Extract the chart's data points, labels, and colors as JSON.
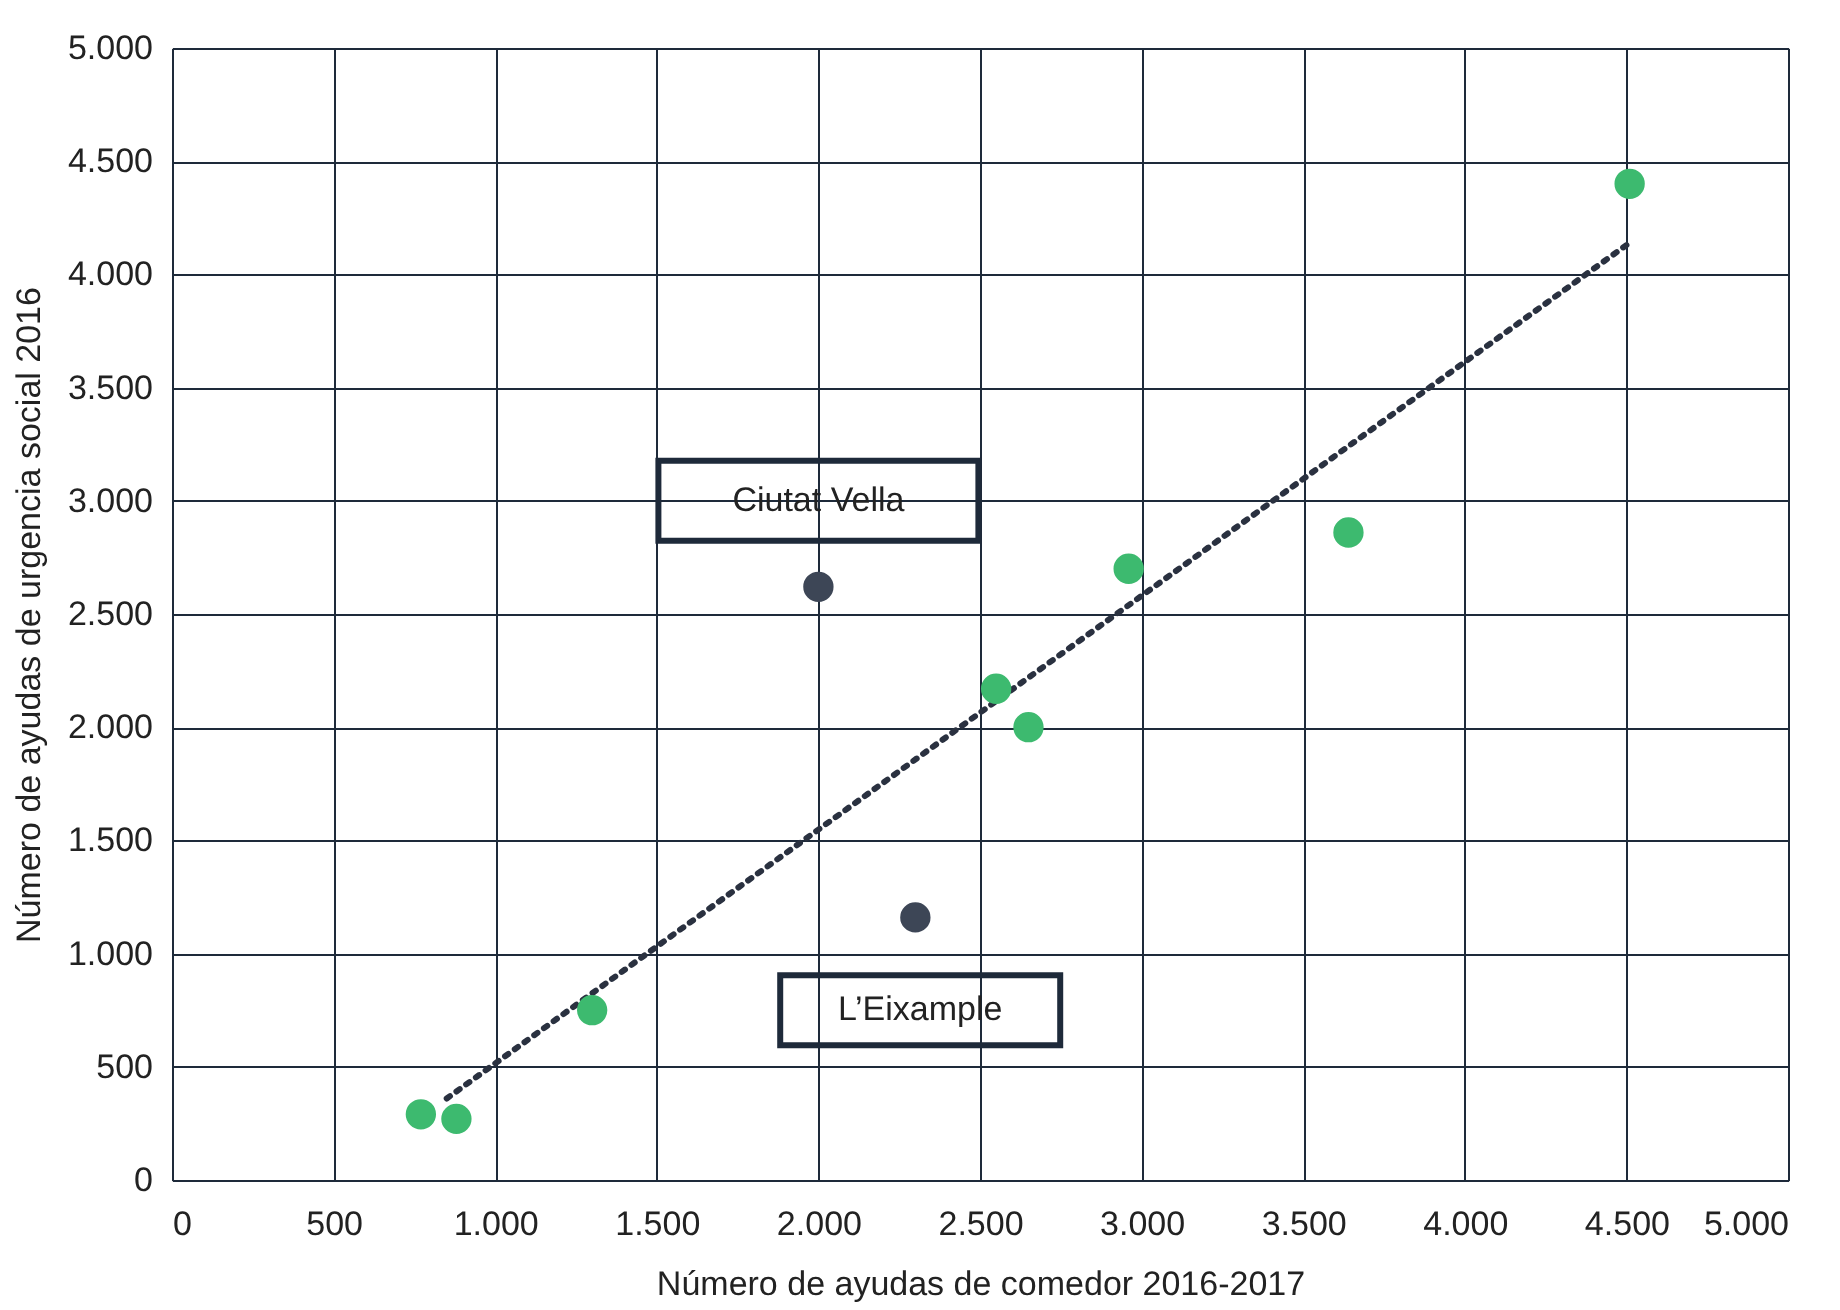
{
  "chart_data": {
    "type": "scatter",
    "xlabel": "Número de ayudas de comedor 2016-2017",
    "ylabel": "Número de ayudas de urgencia social 2016",
    "xlim": [
      0,
      5000
    ],
    "ylim": [
      0,
      5000
    ],
    "xticks": [
      0,
      500,
      {
        "value": 1000,
        "label": "1.000"
      },
      {
        "value": 1500,
        "label": "1.500"
      },
      {
        "value": 2000,
        "label": "2.000"
      },
      {
        "value": 2500,
        "label": "2.500"
      },
      {
        "value": 3000,
        "label": "3.000"
      },
      {
        "value": 3500,
        "label": "3.500"
      },
      {
        "value": 4000,
        "label": "4.000"
      },
      {
        "value": 4500,
        "label": "4.500"
      },
      {
        "value": 5000,
        "label": "5.000"
      }
    ],
    "yticks": [
      0,
      500,
      {
        "value": 1000,
        "label": "1.000"
      },
      {
        "value": 1500,
        "label": "1.500"
      },
      {
        "value": 2000,
        "label": "2.000"
      },
      {
        "value": 2500,
        "label": "2.500"
      },
      {
        "value": 3000,
        "label": "3.000"
      },
      {
        "value": 3500,
        "label": "3.500"
      },
      {
        "value": 4000,
        "label": "4.000"
      },
      {
        "value": 4500,
        "label": "4.500"
      },
      {
        "value": 5000,
        "label": "5.000"
      }
    ],
    "grid": true,
    "marker": "circle",
    "series": [
      {
        "type": "line",
        "color": "#2a3140",
        "line_style": "dotted",
        "marker": "none",
        "x": [
          850,
          4520
        ],
        "values": [
          360,
          4150
        ]
      },
      {
        "color": "#3dba6f",
        "x": [
          770,
          880,
          1300,
          2550,
          2650,
          2960,
          3640,
          4510
        ],
        "values": [
          290,
          270,
          750,
          2170,
          2000,
          2700,
          2860,
          4400
        ]
      },
      {
        "color": "#3d4656",
        "x": [
          2000,
          2300
        ],
        "values": [
          2620,
          1160
        ]
      }
    ],
    "annotations": [
      "Ciutat Vella",
      "L’Eixample"
    ]
  }
}
